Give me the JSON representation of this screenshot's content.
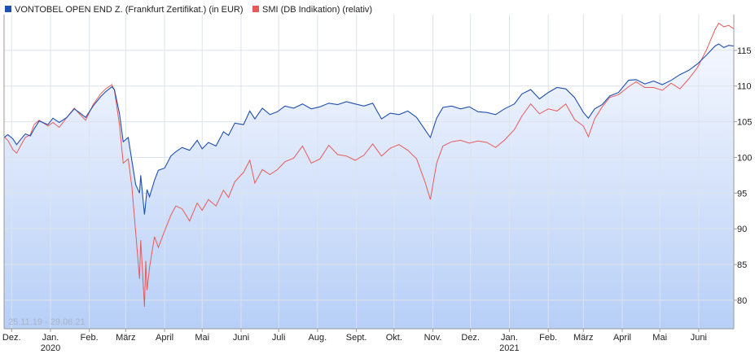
{
  "chart_data": {
    "type": "line",
    "date_range": "25.11.19 - 29.06.21",
    "series": [
      {
        "name": "VONTOBEL OPEN END Z. (Frankfurt Zertifikat.) (in EUR)",
        "color": "#1f4fb0",
        "points": [
          [
            "2019-11-25",
            102.8
          ],
          [
            "2019-11-28",
            103.2
          ],
          [
            "2019-12-02",
            102.6
          ],
          [
            "2019-12-05",
            101.8
          ],
          [
            "2019-12-09",
            102.7
          ],
          [
            "2019-12-12",
            103.3
          ],
          [
            "2019-12-16",
            103.0
          ],
          [
            "2019-12-19",
            104.0
          ],
          [
            "2019-12-23",
            105.1
          ],
          [
            "2019-12-30",
            104.6
          ],
          [
            "2020-01-03",
            105.5
          ],
          [
            "2020-01-08",
            104.9
          ],
          [
            "2020-01-14",
            105.6
          ],
          [
            "2020-01-20",
            106.8
          ],
          [
            "2020-01-24",
            106.3
          ],
          [
            "2020-01-29",
            105.6
          ],
          [
            "2020-02-04",
            107.2
          ],
          [
            "2020-02-10",
            108.5
          ],
          [
            "2020-02-14",
            109.2
          ],
          [
            "2020-02-19",
            109.9
          ],
          [
            "2020-02-21",
            109.5
          ],
          [
            "2020-02-25",
            106.2
          ],
          [
            "2020-02-28",
            102.2
          ],
          [
            "2020-03-03",
            102.8
          ],
          [
            "2020-03-06",
            99.5
          ],
          [
            "2020-03-09",
            96.2
          ],
          [
            "2020-03-12",
            95.0
          ],
          [
            "2020-03-13",
            97.5
          ],
          [
            "2020-03-16",
            92.0
          ],
          [
            "2020-03-18",
            95.5
          ],
          [
            "2020-03-20",
            94.5
          ],
          [
            "2020-03-24",
            96.8
          ],
          [
            "2020-03-27",
            98.2
          ],
          [
            "2020-04-01",
            98.5
          ],
          [
            "2020-04-06",
            100.2
          ],
          [
            "2020-04-10",
            100.8
          ],
          [
            "2020-04-15",
            101.4
          ],
          [
            "2020-04-21",
            101.0
          ],
          [
            "2020-04-27",
            102.4
          ],
          [
            "2020-05-01",
            101.2
          ],
          [
            "2020-05-06",
            102.1
          ],
          [
            "2020-05-12",
            101.6
          ],
          [
            "2020-05-18",
            103.6
          ],
          [
            "2020-05-22",
            103.1
          ],
          [
            "2020-05-27",
            104.8
          ],
          [
            "2020-06-03",
            104.6
          ],
          [
            "2020-06-08",
            106.5
          ],
          [
            "2020-06-12",
            105.4
          ],
          [
            "2020-06-18",
            106.9
          ],
          [
            "2020-06-24",
            106.0
          ],
          [
            "2020-06-30",
            106.4
          ],
          [
            "2020-07-06",
            107.2
          ],
          [
            "2020-07-13",
            106.9
          ],
          [
            "2020-07-20",
            107.5
          ],
          [
            "2020-07-27",
            106.8
          ],
          [
            "2020-08-03",
            107.1
          ],
          [
            "2020-08-10",
            107.6
          ],
          [
            "2020-08-17",
            107.4
          ],
          [
            "2020-08-24",
            107.8
          ],
          [
            "2020-08-31",
            107.5
          ],
          [
            "2020-09-07",
            107.2
          ],
          [
            "2020-09-14",
            107.6
          ],
          [
            "2020-09-21",
            105.4
          ],
          [
            "2020-09-28",
            106.2
          ],
          [
            "2020-10-05",
            106.0
          ],
          [
            "2020-10-12",
            106.5
          ],
          [
            "2020-10-19",
            105.6
          ],
          [
            "2020-10-26",
            103.8
          ],
          [
            "2020-10-30",
            102.8
          ],
          [
            "2020-11-04",
            105.5
          ],
          [
            "2020-11-09",
            107.0
          ],
          [
            "2020-11-16",
            107.2
          ],
          [
            "2020-11-23",
            106.8
          ],
          [
            "2020-11-30",
            107.1
          ],
          [
            "2020-12-07",
            106.4
          ],
          [
            "2020-12-14",
            106.3
          ],
          [
            "2020-12-21",
            106.0
          ],
          [
            "2020-12-28",
            106.8
          ],
          [
            "2021-01-05",
            107.5
          ],
          [
            "2021-01-11",
            108.9
          ],
          [
            "2021-01-18",
            109.5
          ],
          [
            "2021-01-25",
            108.2
          ],
          [
            "2021-02-01",
            109.1
          ],
          [
            "2021-02-08",
            109.8
          ],
          [
            "2021-02-15",
            109.6
          ],
          [
            "2021-02-22",
            108.4
          ],
          [
            "2021-03-01",
            106.3
          ],
          [
            "2021-03-05",
            105.5
          ],
          [
            "2021-03-10",
            106.8
          ],
          [
            "2021-03-16",
            107.4
          ],
          [
            "2021-03-22",
            108.6
          ],
          [
            "2021-03-29",
            109.1
          ],
          [
            "2021-04-06",
            110.8
          ],
          [
            "2021-04-12",
            110.9
          ],
          [
            "2021-04-19",
            110.3
          ],
          [
            "2021-04-26",
            110.7
          ],
          [
            "2021-05-03",
            110.2
          ],
          [
            "2021-05-10",
            110.8
          ],
          [
            "2021-05-17",
            111.6
          ],
          [
            "2021-05-24",
            112.2
          ],
          [
            "2021-05-31",
            113.1
          ],
          [
            "2021-06-07",
            114.3
          ],
          [
            "2021-06-14",
            115.6
          ],
          [
            "2021-06-17",
            115.9
          ],
          [
            "2021-06-21",
            115.4
          ],
          [
            "2021-06-25",
            115.7
          ],
          [
            "2021-06-29",
            115.6
          ]
        ]
      },
      {
        "name": "SMI (DB Indikation) (relativ)",
        "color": "#e85a5a",
        "points": [
          [
            "2019-11-25",
            102.9
          ],
          [
            "2019-11-28",
            102.4
          ],
          [
            "2019-12-02",
            101.1
          ],
          [
            "2019-12-05",
            100.6
          ],
          [
            "2019-12-09",
            101.9
          ],
          [
            "2019-12-12",
            102.8
          ],
          [
            "2019-12-16",
            103.2
          ],
          [
            "2019-12-19",
            104.6
          ],
          [
            "2019-12-23",
            105.2
          ],
          [
            "2019-12-30",
            104.4
          ],
          [
            "2020-01-03",
            104.9
          ],
          [
            "2020-01-08",
            104.2
          ],
          [
            "2020-01-14",
            105.6
          ],
          [
            "2020-01-20",
            106.9
          ],
          [
            "2020-01-24",
            106.1
          ],
          [
            "2020-01-29",
            105.2
          ],
          [
            "2020-02-04",
            107.4
          ],
          [
            "2020-02-10",
            108.9
          ],
          [
            "2020-02-14",
            109.6
          ],
          [
            "2020-02-19",
            110.2
          ],
          [
            "2020-02-21",
            109.4
          ],
          [
            "2020-02-25",
            104.6
          ],
          [
            "2020-02-28",
            99.2
          ],
          [
            "2020-03-03",
            99.8
          ],
          [
            "2020-03-06",
            95.8
          ],
          [
            "2020-03-09",
            89.5
          ],
          [
            "2020-03-12",
            83.0
          ],
          [
            "2020-03-13",
            88.4
          ],
          [
            "2020-03-16",
            79.1
          ],
          [
            "2020-03-17",
            85.5
          ],
          [
            "2020-03-18",
            81.4
          ],
          [
            "2020-03-20",
            84.6
          ],
          [
            "2020-03-24",
            88.9
          ],
          [
            "2020-03-27",
            87.4
          ],
          [
            "2020-04-01",
            89.7
          ],
          [
            "2020-04-06",
            91.9
          ],
          [
            "2020-04-10",
            93.2
          ],
          [
            "2020-04-15",
            92.8
          ],
          [
            "2020-04-21",
            91.1
          ],
          [
            "2020-04-27",
            93.6
          ],
          [
            "2020-05-01",
            92.6
          ],
          [
            "2020-05-06",
            94.1
          ],
          [
            "2020-05-12",
            93.2
          ],
          [
            "2020-05-18",
            95.4
          ],
          [
            "2020-05-22",
            94.4
          ],
          [
            "2020-05-27",
            96.6
          ],
          [
            "2020-06-03",
            97.9
          ],
          [
            "2020-06-08",
            99.6
          ],
          [
            "2020-06-12",
            96.4
          ],
          [
            "2020-06-18",
            98.3
          ],
          [
            "2020-06-24",
            97.6
          ],
          [
            "2020-06-30",
            98.3
          ],
          [
            "2020-07-06",
            99.4
          ],
          [
            "2020-07-13",
            99.9
          ],
          [
            "2020-07-20",
            101.6
          ],
          [
            "2020-07-27",
            99.2
          ],
          [
            "2020-08-03",
            99.8
          ],
          [
            "2020-08-10",
            101.7
          ],
          [
            "2020-08-17",
            100.4
          ],
          [
            "2020-08-24",
            100.2
          ],
          [
            "2020-08-31",
            99.6
          ],
          [
            "2020-09-07",
            100.3
          ],
          [
            "2020-09-14",
            101.9
          ],
          [
            "2020-09-21",
            100.2
          ],
          [
            "2020-09-28",
            101.3
          ],
          [
            "2020-10-05",
            101.8
          ],
          [
            "2020-10-12",
            101.0
          ],
          [
            "2020-10-19",
            99.8
          ],
          [
            "2020-10-26",
            96.4
          ],
          [
            "2020-10-30",
            94.1
          ],
          [
            "2020-11-04",
            99.2
          ],
          [
            "2020-11-09",
            101.6
          ],
          [
            "2020-11-16",
            102.2
          ],
          [
            "2020-11-23",
            102.4
          ],
          [
            "2020-11-30",
            102.0
          ],
          [
            "2020-12-07",
            102.3
          ],
          [
            "2020-12-14",
            102.1
          ],
          [
            "2020-12-21",
            101.4
          ],
          [
            "2020-12-28",
            102.4
          ],
          [
            "2021-01-05",
            103.9
          ],
          [
            "2021-01-11",
            105.8
          ],
          [
            "2021-01-18",
            107.5
          ],
          [
            "2021-01-25",
            106.1
          ],
          [
            "2021-02-01",
            106.8
          ],
          [
            "2021-02-08",
            106.5
          ],
          [
            "2021-02-15",
            107.5
          ],
          [
            "2021-02-22",
            105.3
          ],
          [
            "2021-03-01",
            104.4
          ],
          [
            "2021-03-05",
            102.9
          ],
          [
            "2021-03-10",
            105.4
          ],
          [
            "2021-03-16",
            107.1
          ],
          [
            "2021-03-22",
            108.4
          ],
          [
            "2021-03-29",
            108.8
          ],
          [
            "2021-04-06",
            109.9
          ],
          [
            "2021-04-12",
            110.6
          ],
          [
            "2021-04-19",
            109.8
          ],
          [
            "2021-04-26",
            109.8
          ],
          [
            "2021-05-03",
            109.4
          ],
          [
            "2021-05-10",
            110.4
          ],
          [
            "2021-05-17",
            109.6
          ],
          [
            "2021-05-24",
            111.0
          ],
          [
            "2021-05-31",
            112.6
          ],
          [
            "2021-06-07",
            115.0
          ],
          [
            "2021-06-14",
            117.9
          ],
          [
            "2021-06-17",
            118.8
          ],
          [
            "2021-06-21",
            118.3
          ],
          [
            "2021-06-25",
            118.5
          ],
          [
            "2021-06-29",
            118.0
          ]
        ]
      }
    ],
    "y_ticks": [
      80,
      85,
      90,
      95,
      100,
      105,
      110,
      115
    ],
    "ylim": [
      76,
      120
    ],
    "xlim": [
      "2019-11-25",
      "2021-06-29"
    ],
    "x_ticks": [
      {
        "date": "2019-12-01",
        "label": "Dez.",
        "year": ""
      },
      {
        "date": "2020-01-01",
        "label": "Jan.",
        "year": "2020"
      },
      {
        "date": "2020-02-01",
        "label": "Feb.",
        "year": ""
      },
      {
        "date": "2020-03-01",
        "label": "März",
        "year": ""
      },
      {
        "date": "2020-04-01",
        "label": "April",
        "year": ""
      },
      {
        "date": "2020-05-01",
        "label": "Mai",
        "year": ""
      },
      {
        "date": "2020-06-01",
        "label": "Juni",
        "year": ""
      },
      {
        "date": "2020-07-01",
        "label": "Juli",
        "year": ""
      },
      {
        "date": "2020-08-01",
        "label": "Aug.",
        "year": ""
      },
      {
        "date": "2020-09-01",
        "label": "Sept.",
        "year": ""
      },
      {
        "date": "2020-10-01",
        "label": "Okt.",
        "year": ""
      },
      {
        "date": "2020-11-01",
        "label": "Nov.",
        "year": ""
      },
      {
        "date": "2020-12-01",
        "label": "Dez.",
        "year": ""
      },
      {
        "date": "2021-01-01",
        "label": "Jan.",
        "year": "2021"
      },
      {
        "date": "2021-02-01",
        "label": "Feb.",
        "year": ""
      },
      {
        "date": "2021-03-01",
        "label": "März",
        "year": ""
      },
      {
        "date": "2021-04-01",
        "label": "April",
        "year": ""
      },
      {
        "date": "2021-05-01",
        "label": "Mai",
        "year": ""
      },
      {
        "date": "2021-06-01",
        "label": "Juni",
        "year": ""
      }
    ],
    "grid": true,
    "legend_position": "top-left",
    "colors": {
      "fill_top": "#f4f7fe",
      "fill_bottom": "#b7cff7",
      "grid": "#dde3ec",
      "axis": "#9a9a9a"
    }
  }
}
